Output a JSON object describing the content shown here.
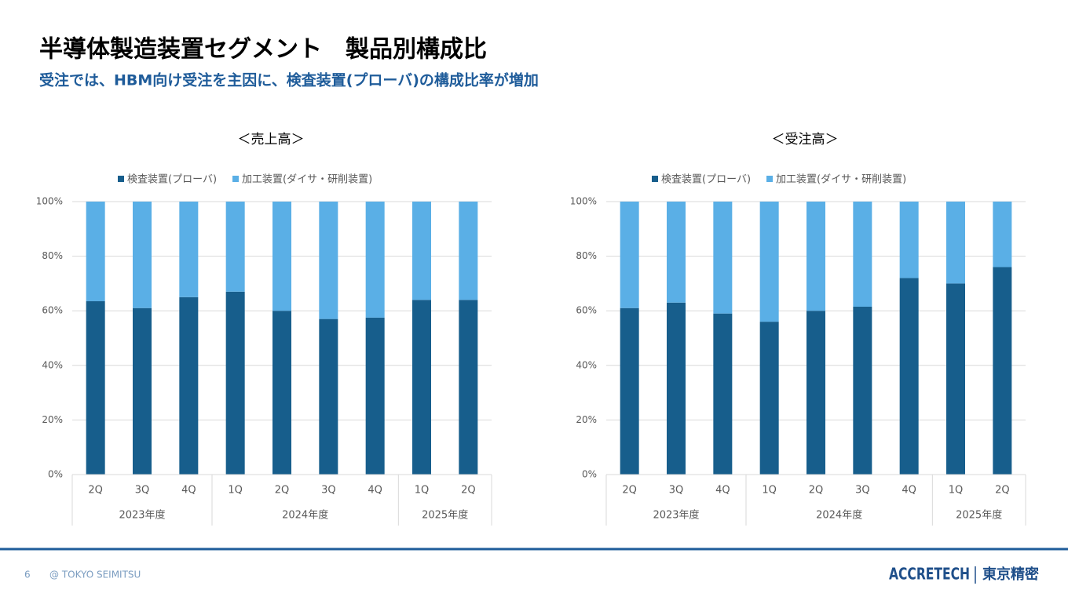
{
  "header": {
    "title": "半導体製造装置セグメント　製品別構成比",
    "subtitle": "受注では、HBM向け受注を主因に、検査装置(プローバ)の構成比率が増加"
  },
  "chart_data": [
    {
      "type": "bar",
      "stacked": true,
      "title": "＜売上高＞",
      "groups": [
        {
          "name": "2023年度",
          "categories": [
            "2Q",
            "3Q",
            "4Q"
          ]
        },
        {
          "name": "2024年度",
          "categories": [
            "1Q",
            "2Q",
            "3Q",
            "4Q"
          ]
        },
        {
          "name": "2025年度",
          "categories": [
            "1Q",
            "2Q"
          ]
        }
      ],
      "series": [
        {
          "name": "検査装置(プローバ)",
          "color": "#175e8c",
          "values": [
            63.5,
            61,
            65,
            67,
            60,
            57,
            57.5,
            64,
            64
          ]
        },
        {
          "name": "加工装置(ダイサ・研削装置)",
          "color": "#5aafe6",
          "values": [
            36.5,
            39,
            35,
            33,
            40,
            43,
            42.5,
            36,
            36
          ]
        }
      ],
      "ylim": [
        0,
        100
      ],
      "yticks": [
        {
          "value": 0,
          "label": "0%"
        },
        {
          "value": 20,
          "label": "20%"
        },
        {
          "value": 40,
          "label": "40%"
        },
        {
          "value": 60,
          "label": "60%"
        },
        {
          "value": 80,
          "label": "80%"
        },
        {
          "value": 100,
          "label": "100%"
        }
      ],
      "grid": true,
      "legend": "top"
    },
    {
      "type": "bar",
      "stacked": true,
      "title": "＜受注高＞",
      "groups": [
        {
          "name": "2023年度",
          "categories": [
            "2Q",
            "3Q",
            "4Q"
          ]
        },
        {
          "name": "2024年度",
          "categories": [
            "1Q",
            "2Q",
            "3Q",
            "4Q"
          ]
        },
        {
          "name": "2025年度",
          "categories": [
            "1Q",
            "2Q"
          ]
        }
      ],
      "series": [
        {
          "name": "検査装置(プローバ)",
          "color": "#175e8c",
          "values": [
            61,
            63,
            59,
            56,
            60,
            61.5,
            72,
            70,
            76
          ]
        },
        {
          "name": "加工装置(ダイサ・研削装置)",
          "color": "#5aafe6",
          "values": [
            39,
            37,
            41,
            44,
            40,
            38.5,
            28,
            30,
            24
          ]
        }
      ],
      "ylim": [
        0,
        100
      ],
      "yticks": [
        {
          "value": 0,
          "label": "0%"
        },
        {
          "value": 20,
          "label": "20%"
        },
        {
          "value": 40,
          "label": "40%"
        },
        {
          "value": 60,
          "label": "60%"
        },
        {
          "value": 80,
          "label": "80%"
        },
        {
          "value": 100,
          "label": "100%"
        }
      ],
      "grid": true,
      "legend": "top"
    }
  ],
  "footer": {
    "page": "6",
    "copyright": "@ TOKYO SEIMITSU",
    "logo": "ACCRETECH",
    "company": "東京精密"
  }
}
